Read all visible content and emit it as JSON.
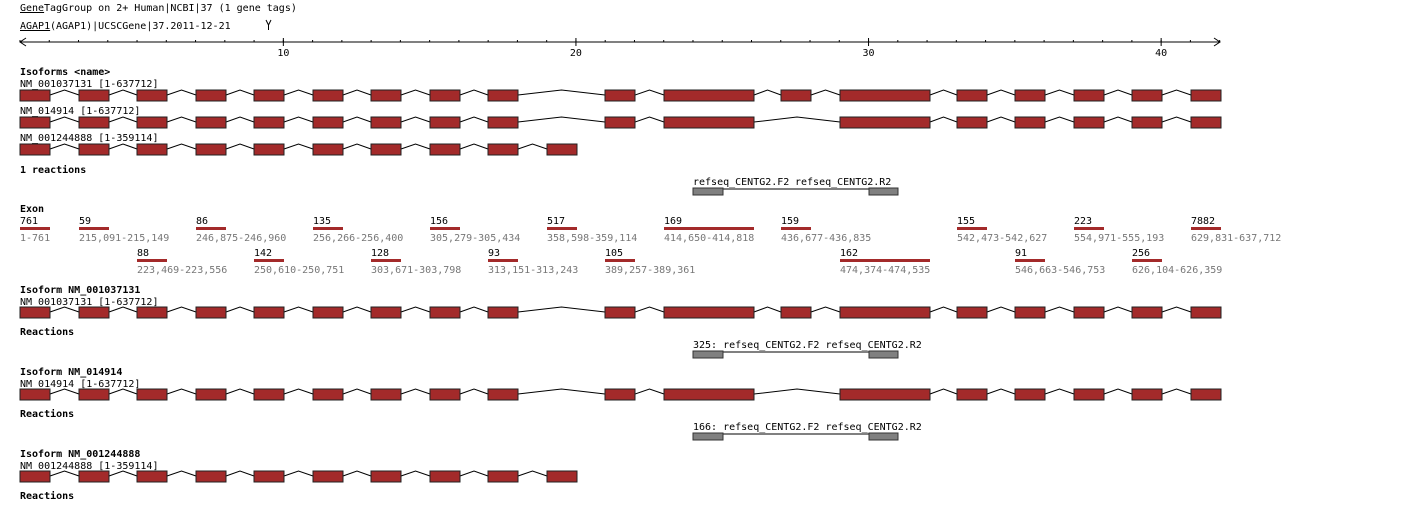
{
  "header": {
    "title_link": "Gene",
    "title": "TagGroup on 2+ Human|NCBI|37 (1 gene tags)",
    "gene_link": "AGAP1",
    "gene": "(AGAP1)|UCSCGene|37.2011-12-21"
  },
  "ruler": {
    "ticks": [
      10,
      20,
      30,
      40
    ]
  },
  "isoforms": {
    "title": "Isoforms <name>",
    "items": [
      "NM_001037131 [1-637712]",
      "NM_014914 [1-637712]",
      "NM_001244888 [1-359114]"
    ]
  },
  "reactions_summary": {
    "title": "1 reactions",
    "forward": "refseq_CENTG2.F2",
    "reverse": "refseq_CENTG2.R2"
  },
  "exons": {
    "title": "Exon",
    "items": [
      {
        "length": 761,
        "range": "1-761"
      },
      {
        "length": 59,
        "range": "215,091-215,149"
      },
      {
        "length": 88,
        "range": "223,469-223,556"
      },
      {
        "length": 86,
        "range": "246,875-246,960"
      },
      {
        "length": 142,
        "range": "250,610-250,751"
      },
      {
        "length": 135,
        "range": "256,266-256,400"
      },
      {
        "length": 128,
        "range": "303,671-303,798"
      },
      {
        "length": 156,
        "range": "305,279-305,434"
      },
      {
        "length": 93,
        "range": "313,151-313,243"
      },
      {
        "length": 517,
        "range": "358,598-359,114"
      },
      {
        "length": 105,
        "range": "389,257-389,361"
      },
      {
        "length": 169,
        "range": "414,650-414,818"
      },
      {
        "length": 159,
        "range": "436,677-436,835"
      },
      {
        "length": 162,
        "range": "474,374-474,535"
      },
      {
        "length": 155,
        "range": "542,473-542,627"
      },
      {
        "length": 91,
        "range": "546,663-546,753"
      },
      {
        "length": 223,
        "range": "554,971-555,193"
      },
      {
        "length": 256,
        "range": "626,104-626,359"
      },
      {
        "length": 7882,
        "range": "629,831-637,712"
      }
    ]
  },
  "isoform_details": [
    {
      "title": "Isoform NM_001037131",
      "label": "NM_001037131 [1-637712]",
      "reactions_title": "Reactions",
      "reaction": "325: refseq_CENTG2.F2 refseq_CENTG2.R2"
    },
    {
      "title": "Isoform NM_014914",
      "label": "NM_014914 [1-637712]",
      "reactions_title": "Reactions",
      "reaction": "166: refseq_CENTG2.F2 refseq_CENTG2.R2"
    },
    {
      "title": "Isoform NM_001244888",
      "label": "NM_001244888 [1-359114]",
      "reactions_title": "Reactions"
    }
  ]
}
